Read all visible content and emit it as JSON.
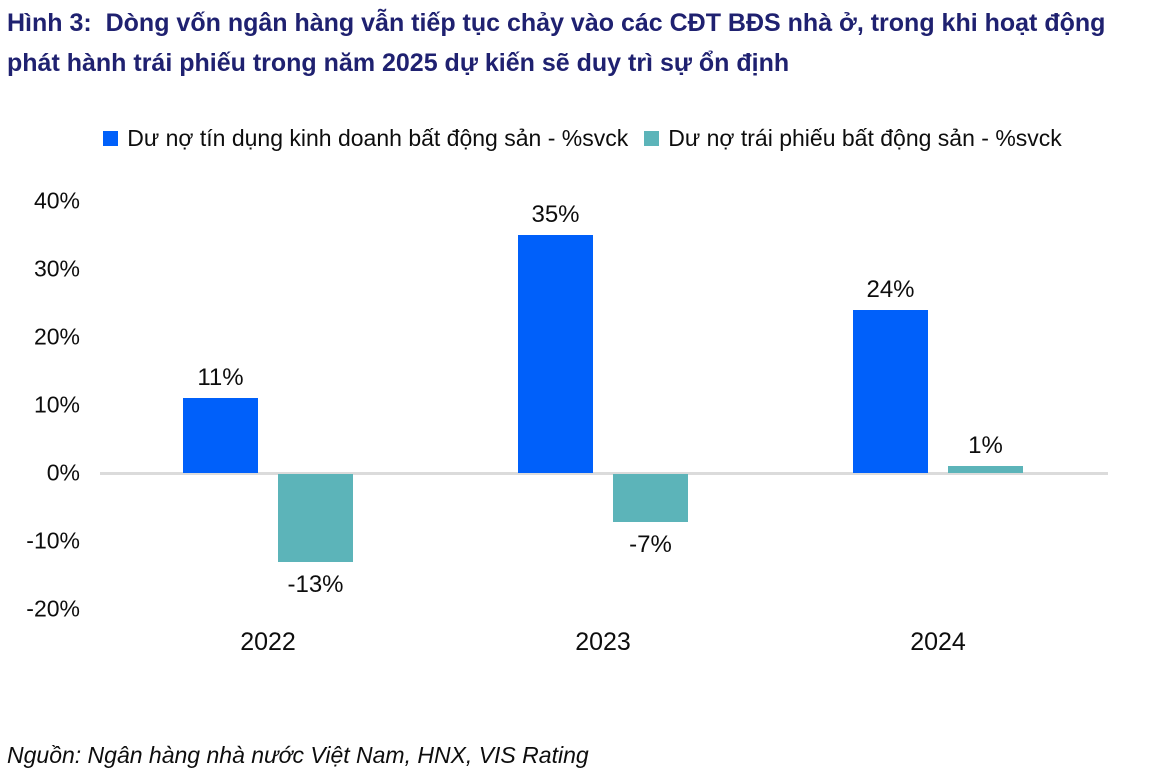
{
  "figure": {
    "title": "Hình 3:  Dòng vốn ngân hàng vẫn tiếp tục chảy vào các CĐT BĐS nhà ở, trong khi hoạt động phát hành trái phiếu trong năm 2025 dự kiến sẽ duy trì sự ổn định",
    "source": "Nguồn: Ngân hàng nhà nước Việt Nam, HNX, VIS Rating"
  },
  "colors": {
    "title_navy": "#1F2170",
    "credit_blue": "#0060FA",
    "bond_teal": "#5CB4B9",
    "axis_line_gray": "#DBDBDB",
    "label_black": "#0D0D0D"
  },
  "chart_data": {
    "type": "bar",
    "categories": [
      "2022",
      "2023",
      "2024"
    ],
    "series": [
      {
        "name": "Dư nợ tín dụng kinh doanh bất động sản - %svck",
        "color": "#0060FA",
        "values": [
          11,
          35,
          24
        ],
        "labels": [
          "11%",
          "35%",
          "24%"
        ]
      },
      {
        "name": "Dư nợ trái phiếu bất động sản - %svck",
        "color": "#5CB4B9",
        "values": [
          -13,
          -7,
          1
        ],
        "labels": [
          "-13%",
          "-7%",
          "1%"
        ]
      }
    ],
    "yticks": [
      {
        "value": 40,
        "label": "40%"
      },
      {
        "value": 30,
        "label": "30%"
      },
      {
        "value": 20,
        "label": "20%"
      },
      {
        "value": 10,
        "label": "10%"
      },
      {
        "value": 0,
        "label": "0%"
      },
      {
        "value": -10,
        "label": "-10%"
      },
      {
        "value": -20,
        "label": "-20%"
      }
    ],
    "ylim": [
      -20,
      40
    ],
    "grid": false,
    "legend_position": "top",
    "data_labels": true
  }
}
